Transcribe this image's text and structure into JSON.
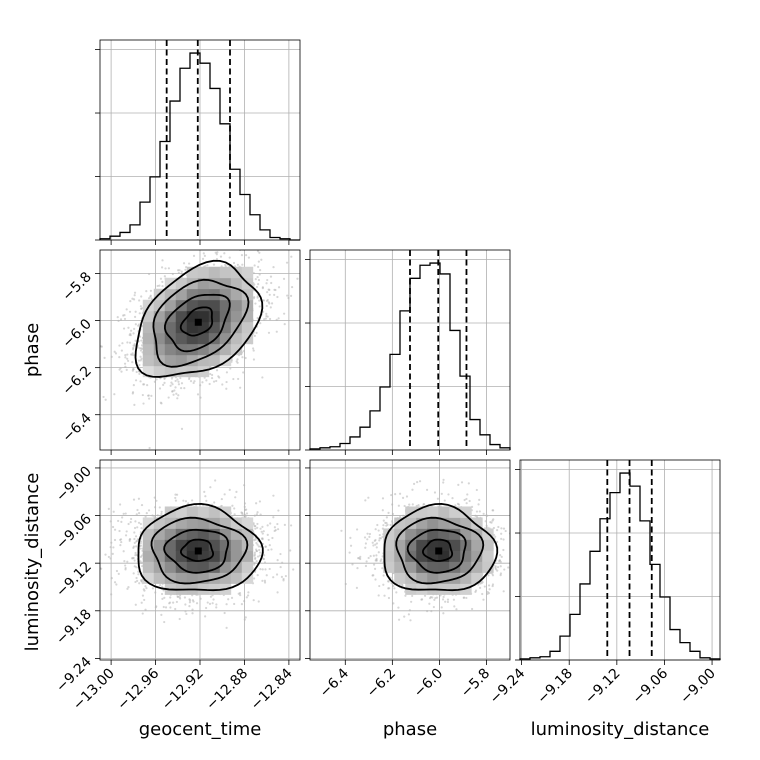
{
  "chart_data": {
    "type": "corner",
    "parameters": [
      {
        "name": "geocent_time",
        "label": "geocent_time",
        "range": [
          -13.01,
          -12.83
        ],
        "ticks": [
          -13.0,
          -12.96,
          -12.92,
          -12.88,
          -12.84
        ],
        "tick_labels": [
          "−13.00",
          "−12.96",
          "−12.92",
          "−12.88",
          "−12.84"
        ],
        "quantiles": [
          -12.95,
          -12.922,
          -12.893
        ],
        "median": -12.922,
        "std": 0.028
      },
      {
        "name": "phase",
        "label": "phase",
        "range": [
          -6.55,
          -5.7
        ],
        "ticks": [
          -6.4,
          -6.2,
          -6.0,
          -5.8
        ],
        "tick_labels": [
          "−6.4",
          "−6.2",
          "−6.0",
          "−5.8"
        ],
        "quantiles": [
          -6.125,
          -6.005,
          -5.885
        ],
        "median": -6.005,
        "std": 0.12
      },
      {
        "name": "luminosity_distance",
        "label": "luminosity_distance",
        "range": [
          -9.242,
          -8.99
        ],
        "ticks": [
          -9.24,
          -9.18,
          -9.12,
          -9.06,
          -9.0
        ],
        "tick_labels": [
          "−9.24",
          "−9.18",
          "−9.12",
          "−9.06",
          "−9.00"
        ],
        "quantiles": [
          -9.132,
          -9.104,
          -9.076
        ],
        "median": -9.104,
        "std": 0.027
      }
    ],
    "histograms": [
      {
        "param": "geocent_time",
        "counts": [
          1,
          3,
          6,
          12,
          30,
          50,
          78,
          110,
          136,
          148,
          140,
          120,
          92,
          56,
          36,
          20,
          8,
          2,
          1,
          0
        ]
      },
      {
        "param": "phase",
        "counts": [
          1,
          2,
          3,
          6,
          12,
          21,
          36,
          58,
          88,
          128,
          158,
          170,
          172,
          162,
          110,
          68,
          28,
          14,
          5,
          2
        ]
      },
      {
        "param": "luminosity_distance",
        "counts": [
          1,
          2,
          3,
          8,
          22,
          42,
          70,
          100,
          130,
          154,
          172,
          160,
          128,
          88,
          58,
          28,
          16,
          8,
          2,
          1
        ]
      }
    ],
    "pairs": [
      {
        "x": "geocent_time",
        "y": "phase",
        "correlation": 0.35
      },
      {
        "x": "geocent_time",
        "y": "luminosity_distance",
        "correlation": 0.0
      },
      {
        "x": "phase",
        "y": "luminosity_distance",
        "correlation": 0.0
      }
    ],
    "grid": true,
    "colors": {
      "line": "#000000",
      "scatter": "#b4b4b4",
      "grid": "#b0b0b0"
    }
  }
}
